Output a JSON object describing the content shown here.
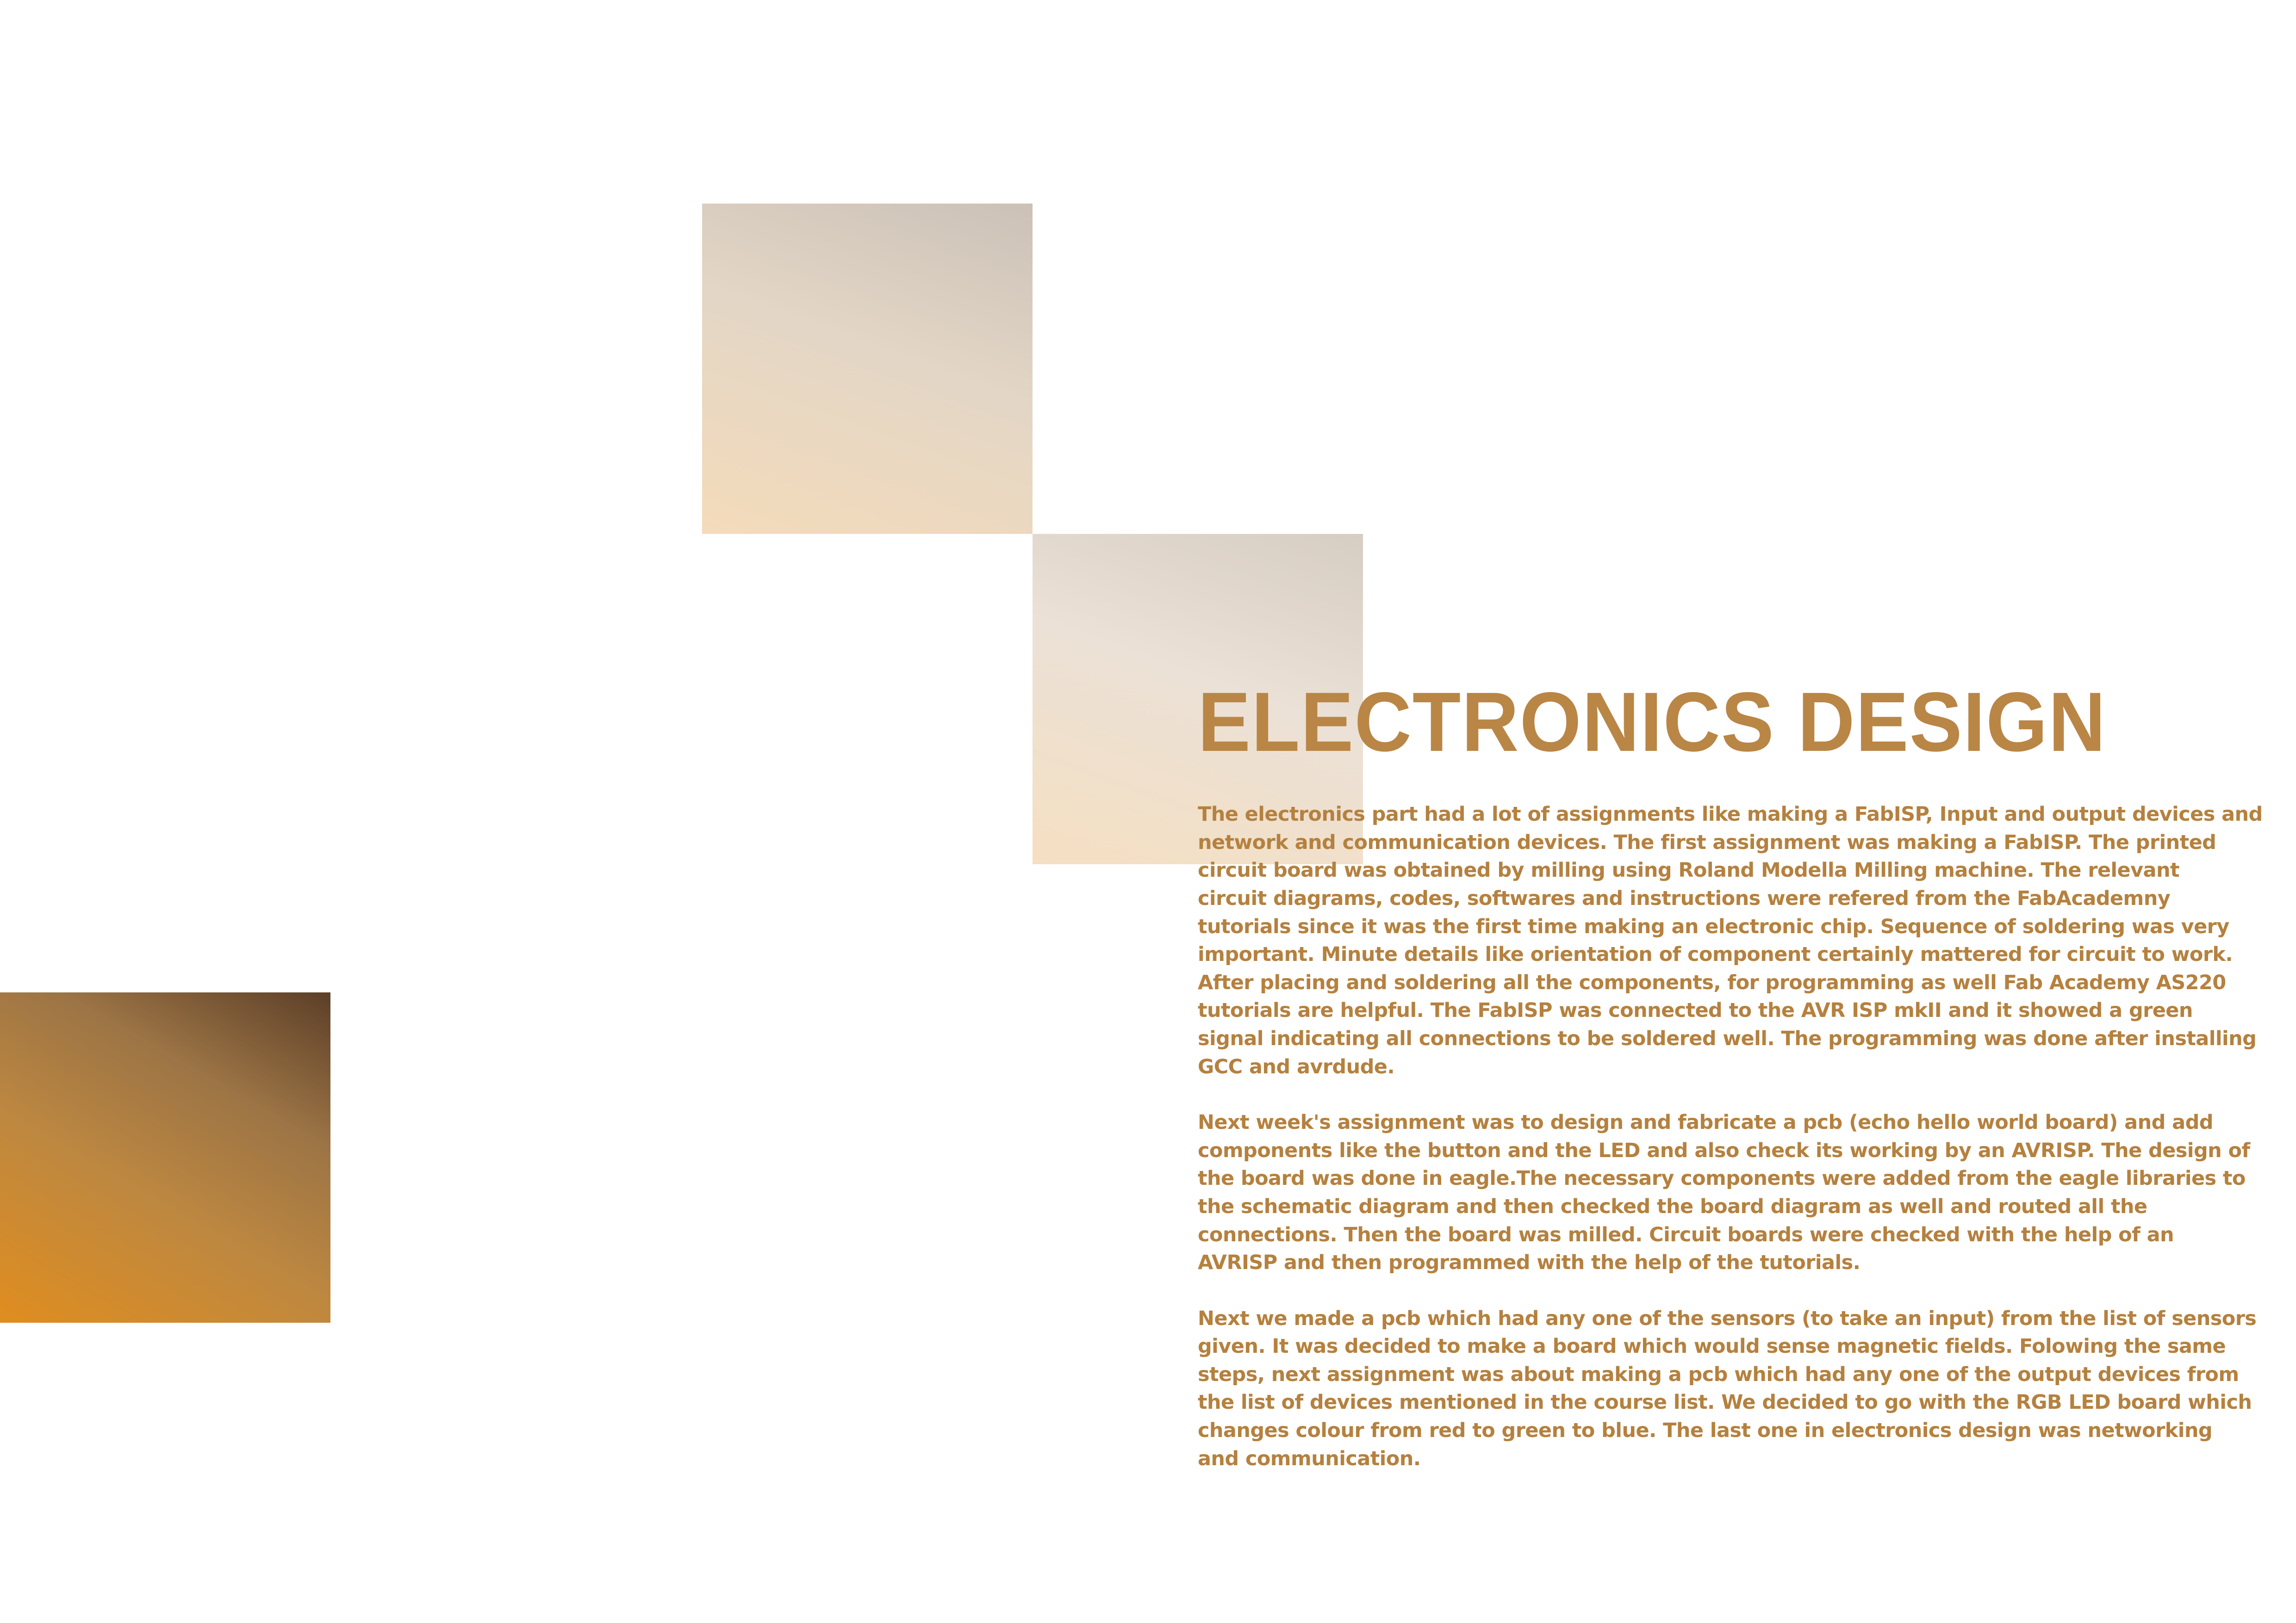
{
  "page": {
    "title": "ELECTRONICS DESIGN",
    "paragraphs": [
      [
        "The electronics part had a lot of assignments like making a FabISP, Input and output devices and",
        "network and communication devices. The first assignment was making a FabISP. The printed",
        "circuit board was obtained by milling using Roland Modella Milling machine. The relevant",
        "circuit diagrams, codes, softwares and instructions were refered from the FabAcademny",
        "tutorials since it was the first time making an electronic chip. Sequence of soldering was very",
        "important. Minute details like orientation of component certainly mattered for circuit to work.",
        "After placing and soldering all the components, for programming as well Fab Academy AS220",
        "tutorials are helpful. The FabISP was connected to the AVR ISP mkII and it showed a green",
        "signal indicating all connections to be soldered well. The programming was done after installing",
        "GCC and avrdude."
      ],
      [
        "Next week's assignment was to design and fabricate a pcb (echo hello world board) and add",
        "components like the button and the LED and also check its working by an AVRISP. The design of",
        "the board was done in eagle.The necessary components were added from the eagle libraries to",
        "the schematic diagram and then checked the board diagram as well and routed all the",
        "connections. Then the board was milled. Circuit boards were checked with the help of an",
        "AVRISP and then programmed with the help of the tutorials."
      ],
      [
        "Next we made a pcb which had any one of the sensors (to take an input) from the list of sensors",
        "given. It was decided to make a board which would sense magnetic fields. Folowing the same",
        "steps, next assignment was about making a pcb which had any one of the output devices from",
        "the list of devices mentioned in the course list. We decided to go with the RGB LED board which",
        "changes colour from red to green to blue. The last one in electronics design was networking",
        "and communication."
      ]
    ]
  },
  "colors": {
    "title": "#b98646",
    "body_text": "#b5813f",
    "background": "#ffffff"
  }
}
